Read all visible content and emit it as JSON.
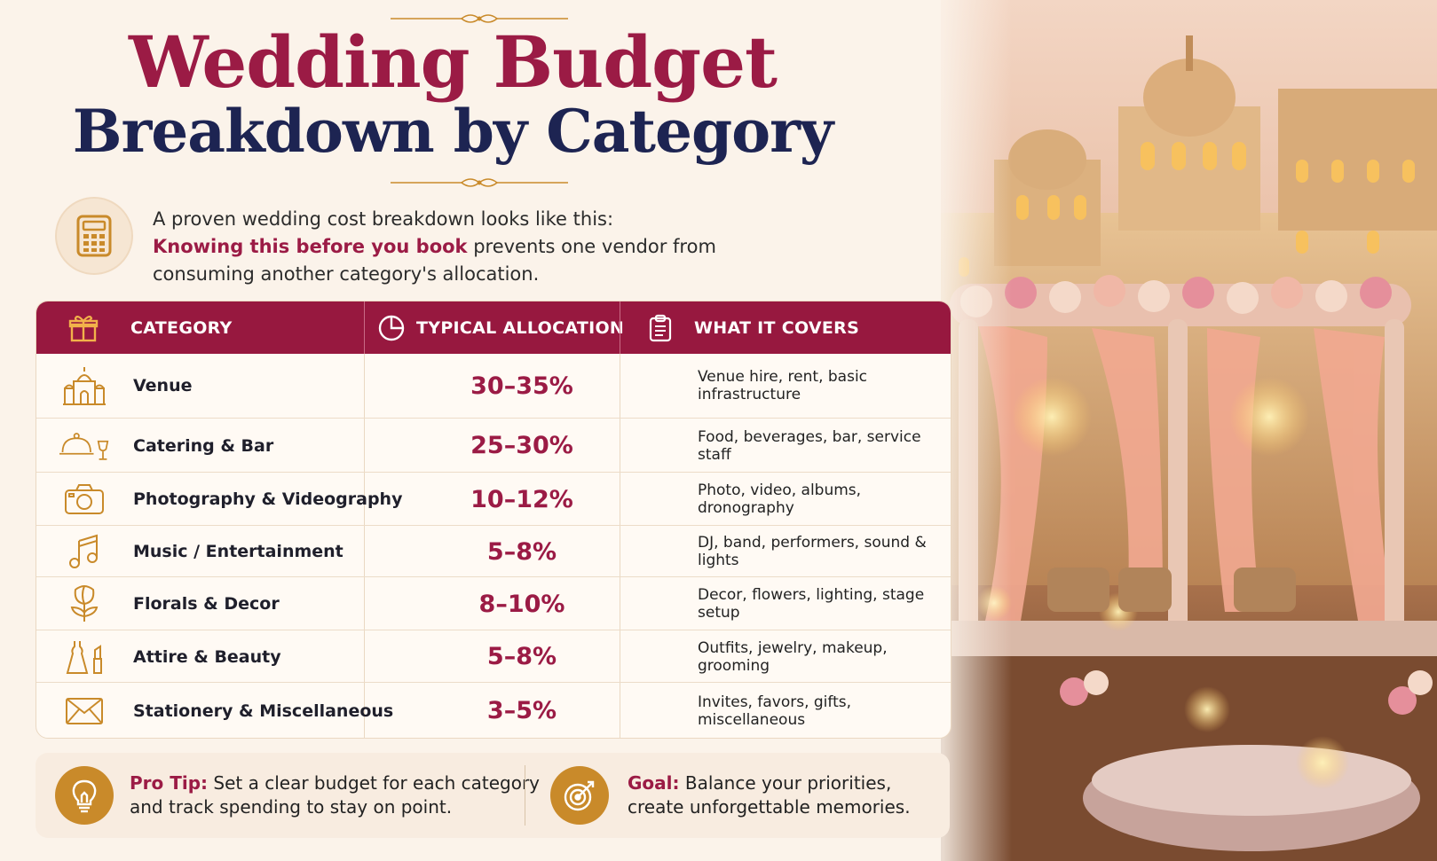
{
  "title": {
    "line1": "Wedding Budget",
    "line2": "Breakdown by Category"
  },
  "intro": {
    "line1": "A proven wedding cost breakdown looks like this:",
    "highlight": "Knowing this before you book",
    "line2_rest": " prevents one vendor from",
    "line3": "consuming another category's allocation."
  },
  "table": {
    "headers": {
      "category": "CATEGORY",
      "allocation": "TYPICAL ALLOCATION",
      "covers": "WHAT IT COVERS"
    },
    "rows": [
      {
        "icon": "palace-icon",
        "category": "Venue",
        "allocation": "30–35%",
        "covers": "Venue hire, rent, basic infrastructure"
      },
      {
        "icon": "cloche-glass-icon",
        "category": "Catering & Bar",
        "allocation": "25–30%",
        "covers": "Food, beverages, bar, service staff"
      },
      {
        "icon": "camera-icon",
        "category": "Photography & Videography",
        "allocation": "10–12%",
        "covers": "Photo, video, albums, dronography"
      },
      {
        "icon": "music-note-icon",
        "category": "Music / Entertainment",
        "allocation": "5–8%",
        "covers": "DJ, band, performers, sound & lights"
      },
      {
        "icon": "flower-icon",
        "category": "Florals & Decor",
        "allocation": "8–10%",
        "covers": "Decor, flowers, lighting, stage setup"
      },
      {
        "icon": "dress-lipstick-icon",
        "category": "Attire & Beauty",
        "allocation": "5–8%",
        "covers": "Outfits, jewelry, makeup, grooming"
      },
      {
        "icon": "envelope-icon",
        "category": "Stationery & Miscellaneous",
        "allocation": "3–5%",
        "covers": "Invites, favors, gifts, miscellaneous"
      }
    ]
  },
  "tips": {
    "pro_label": "Pro Tip:",
    "pro_line1": " Set a clear budget for each category",
    "pro_line2": "and track spending to stay on point.",
    "goal_label": "Goal:",
    "goal_line1": " Balance your priorities,",
    "goal_line2": "create unforgettable memories."
  },
  "colors": {
    "accent": "#97183f",
    "navy": "#1d2452",
    "gold": "#c98a2a",
    "background": "#fbf3ea"
  }
}
